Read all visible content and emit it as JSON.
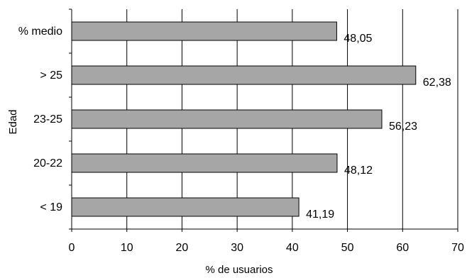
{
  "chart_data": {
    "type": "bar",
    "orientation": "horizontal",
    "categories": [
      "% medio",
      "> 25",
      "23-25",
      "20-22",
      "< 19"
    ],
    "values": [
      48.05,
      62.38,
      56.23,
      48.12,
      41.19
    ],
    "value_labels": [
      "48,05",
      "62,38",
      "56,23",
      "48,12",
      "41,19"
    ],
    "xlabel": "% de usuarios",
    "ylabel": "Edad",
    "xlim": [
      0,
      70
    ],
    "x_ticks": [
      0,
      10,
      20,
      30,
      40,
      50,
      60,
      70
    ],
    "grid": "vertical",
    "legend": "none",
    "bar_color": "#a6a6a6",
    "bar_edge_color": "#000000"
  }
}
